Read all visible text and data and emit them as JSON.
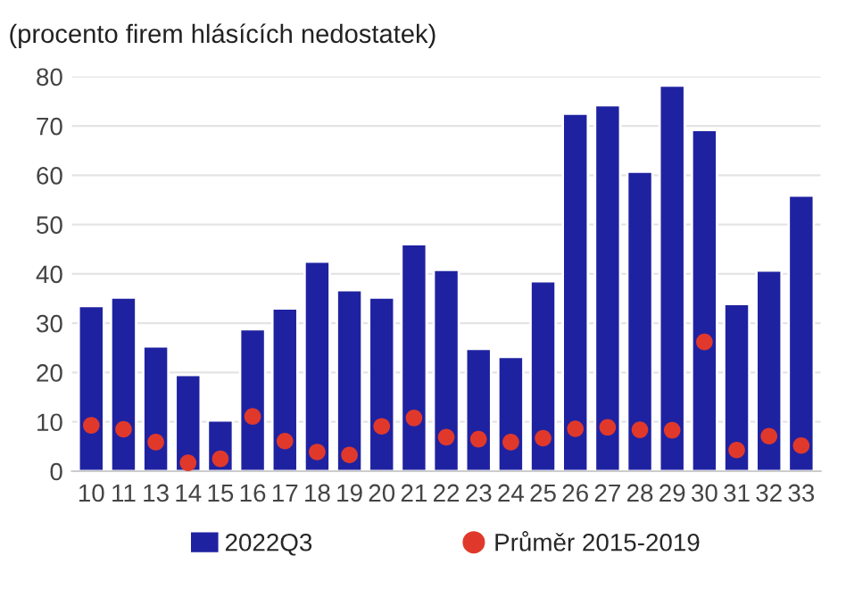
{
  "chart_data": {
    "type": "bar",
    "title": "(procento firem hlásících nedostatek)",
    "categories": [
      "10",
      "11",
      "13",
      "14",
      "15",
      "16",
      "17",
      "18",
      "19",
      "20",
      "21",
      "22",
      "23",
      "24",
      "25",
      "26",
      "27",
      "28",
      "29",
      "30",
      "31",
      "32",
      "33"
    ],
    "series": [
      {
        "name": "2022Q3",
        "color": "#1f22a0",
        "values": [
          33.5,
          35.2,
          25.3,
          19.5,
          10.3,
          28.8,
          33,
          42.5,
          36.7,
          35.2,
          46,
          40.8,
          24.8,
          23.2,
          38.5,
          72.5,
          74.2,
          60.7,
          78.2,
          69.2,
          33.9,
          40.7,
          55.9
        ]
      },
      {
        "name": "Průměr 2015-2019",
        "type": "scatter",
        "marker": "circle",
        "color": "#e0392b",
        "values": [
          9.3,
          8.5,
          5.9,
          1.7,
          2.5,
          11.1,
          6.1,
          3.9,
          3.3,
          9.1,
          10.8,
          6.9,
          6.5,
          5.9,
          6.7,
          8.6,
          8.9,
          8.4,
          8.3,
          26.2,
          4.3,
          7.1,
          5.2
        ]
      }
    ],
    "ylim": [
      0,
      80
    ],
    "yticks": [
      0,
      10,
      20,
      30,
      40,
      50,
      60,
      70,
      80
    ],
    "grid": "y",
    "legend": "bottom"
  }
}
